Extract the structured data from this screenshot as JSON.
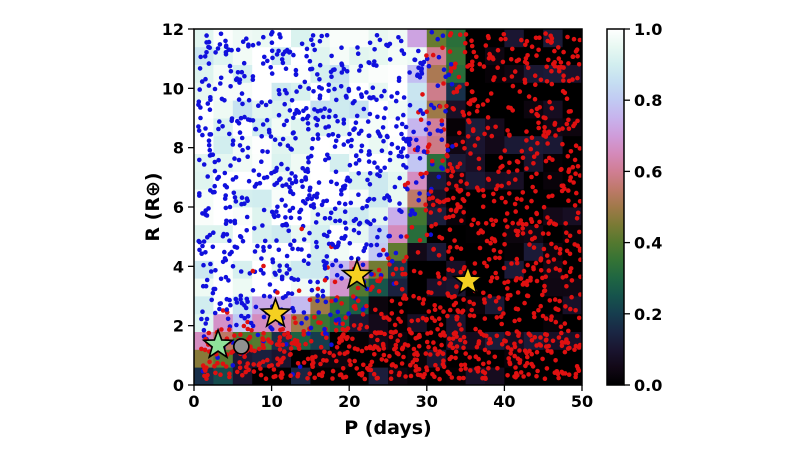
{
  "chart_data": {
    "type": "heatmap",
    "title": "",
    "xlabel": "P (days)",
    "ylabel": "R (R⊕)",
    "xlim": [
      0,
      50
    ],
    "ylim": [
      0,
      12
    ],
    "xticks": [
      "0",
      "10",
      "20",
      "30",
      "40",
      "50"
    ],
    "yticks": [
      "0",
      "2",
      "4",
      "6",
      "8",
      "10",
      "12"
    ],
    "colorbar": {
      "range": [
        0,
        1
      ],
      "ticks": [
        "0.0",
        "0.2",
        "0.4",
        "0.6",
        "0.8",
        "1.0"
      ],
      "colormap": "cubehelix"
    },
    "heatmap": {
      "p_bin_edges": [
        0,
        2.5,
        5,
        7.5,
        10,
        12.5,
        15,
        17.5,
        20,
        22.5,
        25,
        27.5,
        30,
        32.5,
        35,
        37.5,
        40,
        42.5,
        45,
        47.5,
        50
      ],
      "r_bin_edges": [
        0,
        0.6,
        1.2,
        1.8,
        2.4,
        3.0,
        3.6,
        4.2,
        4.8,
        5.4,
        6.0,
        6.6,
        7.2,
        7.8,
        8.4,
        9.0,
        9.6,
        10.2,
        10.8,
        11.4,
        12.0
      ],
      "description": "detection fraction per (P,R) bin: ~1 at short period and large radius, falling to ~0 at long period and small radius"
    },
    "points": {
      "detected_color": "#1010dd",
      "missed_color": "#e01010",
      "description": "injected planets: blue = recovered, red = not recovered"
    },
    "markers": [
      {
        "shape": "star",
        "color": "#f5d021",
        "P": 10.5,
        "R": 2.4
      },
      {
        "shape": "star",
        "color": "#f5d021",
        "P": 21.0,
        "R": 3.7
      },
      {
        "shape": "star",
        "color": "#f5d021",
        "P": 35.3,
        "R": 3.5
      },
      {
        "shape": "star",
        "color": "#8fe39a",
        "P": 3.1,
        "R": 1.35
      },
      {
        "shape": "circle",
        "color": "#909090",
        "P": 6.1,
        "R": 1.3
      }
    ]
  }
}
